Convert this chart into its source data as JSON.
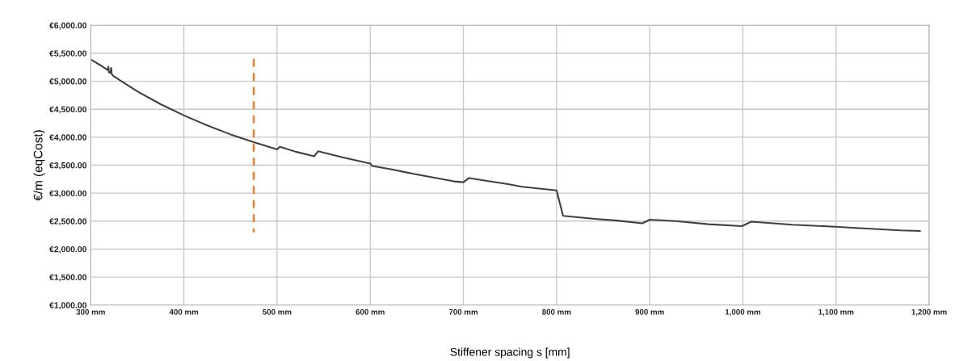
{
  "chart_data": {
    "type": "line",
    "xlabel": "Stiffener spacing s [mm]",
    "ylabel": "€/m (eqCost)",
    "xlim": [
      300,
      1200
    ],
    "ylim": [
      1000,
      6000
    ],
    "xticks": [
      {
        "value": 300,
        "label": "300 mm"
      },
      {
        "value": 400,
        "label": "400 mm"
      },
      {
        "value": 500,
        "label": "500 mm"
      },
      {
        "value": 600,
        "label": "600 mm"
      },
      {
        "value": 700,
        "label": "700 mm"
      },
      {
        "value": 800,
        "label": "800 mm"
      },
      {
        "value": 900,
        "label": "900 mm"
      },
      {
        "value": 1000,
        "label": "1,000 mm"
      },
      {
        "value": 1100,
        "label": "1,100 mm"
      },
      {
        "value": 1200,
        "label": "1,200 mm"
      }
    ],
    "yticks": [
      {
        "value": 1000,
        "label": "€1,000.00"
      },
      {
        "value": 1500,
        "label": "€1,500.00"
      },
      {
        "value": 2000,
        "label": "€2,000.00"
      },
      {
        "value": 2500,
        "label": "€2,500.00"
      },
      {
        "value": 3000,
        "label": "€3,000.00"
      },
      {
        "value": 3500,
        "label": "€3,500.00"
      },
      {
        "value": 4000,
        "label": "€4,000.00"
      },
      {
        "value": 4500,
        "label": "€4,500.00"
      },
      {
        "value": 5000,
        "label": "€5,000.00"
      },
      {
        "value": 5500,
        "label": "€5,500.00"
      },
      {
        "value": 6000,
        "label": "€6,000.00"
      }
    ],
    "grid": true,
    "legend": false,
    "series": [
      {
        "color": "#404040",
        "line_style": "solid",
        "x": [
          300,
          310,
          318,
          319,
          319.5,
          321,
          322,
          322.5,
          324,
          325,
          350,
          375,
          400,
          425,
          450,
          475,
          500,
          503,
          520,
          540,
          544,
          570,
          600,
          602,
          622,
          651,
          690,
          700,
          706,
          748,
          763,
          800,
          807,
          841,
          865,
          892,
          900,
          928,
          963,
          999,
          1009,
          1053,
          1099,
          1125,
          1169,
          1190
        ],
        "values": [
          5390,
          5290,
          5200,
          5260,
          5160,
          5150,
          5240,
          5130,
          5100,
          5087,
          4820,
          4590,
          4390,
          4210,
          4050,
          3910,
          3782,
          3830,
          3740,
          3660,
          3748,
          3640,
          3530,
          3485,
          3428,
          3330,
          3210,
          3195,
          3270,
          3160,
          3115,
          3050,
          2595,
          2540,
          2510,
          2460,
          2525,
          2500,
          2445,
          2410,
          2490,
          2435,
          2400,
          2375,
          2335,
          2325
        ]
      },
      {
        "color": "#ed7d31",
        "line_style": "dashed",
        "x": [
          475,
          475
        ],
        "values": [
          5400,
          2300
        ]
      }
    ]
  }
}
